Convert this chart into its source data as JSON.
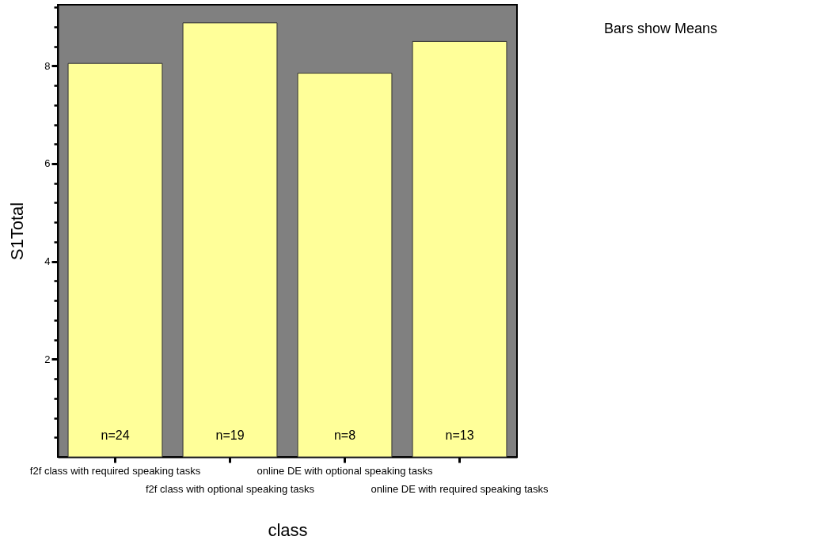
{
  "chart_data": {
    "type": "bar",
    "xlabel": "class",
    "ylabel": "S1Total",
    "categories": [
      "f2f class with required speaking tasks",
      "f2f class with optional speaking tasks",
      "online DE with optional speaking tasks",
      "online DE with required speaking tasks"
    ],
    "values": [
      8.05,
      8.88,
      7.85,
      8.5
    ],
    "color": "#ffff99",
    "ylim": [
      0,
      9.25
    ],
    "yticks": [
      {
        "value": 0.4,
        "label": null
      },
      {
        "value": 0.8,
        "label": null
      },
      {
        "value": 1.2,
        "label": null
      },
      {
        "value": 1.6,
        "label": null
      },
      2,
      {
        "value": 2.4,
        "label": null
      },
      {
        "value": 2.8,
        "label": null
      },
      {
        "value": 3.2,
        "label": null
      },
      {
        "value": 3.6,
        "label": null
      },
      4,
      {
        "value": 4.4,
        "label": null
      },
      {
        "value": 4.8,
        "label": null
      },
      {
        "value": 5.2,
        "label": null
      },
      {
        "value": 5.6,
        "label": null
      },
      6,
      {
        "value": 6.4,
        "label": null
      },
      {
        "value": 6.8,
        "label": null
      },
      {
        "value": 7.2,
        "label": null
      },
      {
        "value": 7.6,
        "label": null
      },
      8,
      {
        "value": 8.4,
        "label": null
      },
      {
        "value": 8.8,
        "label": null
      },
      {
        "value": 9.2,
        "label": null
      }
    ],
    "grid": false,
    "annotations": [
      "n=24",
      "n=19",
      "n=8",
      "n=13",
      "Bars show Means"
    ]
  }
}
